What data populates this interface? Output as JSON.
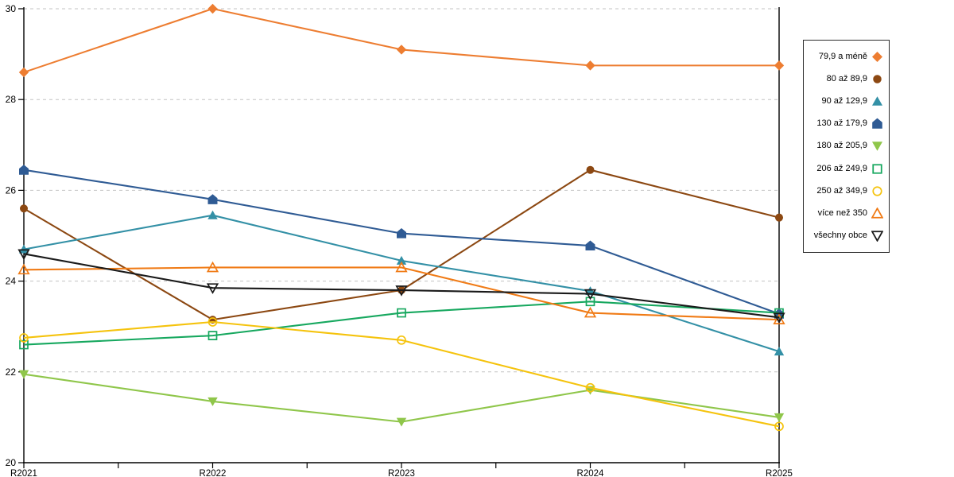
{
  "chart_data": {
    "type": "line",
    "title": "",
    "xlabel": "",
    "ylabel": "",
    "x_categories": [
      "R2021",
      "R2022",
      "R2023",
      "R2024",
      "R2025"
    ],
    "ylim": [
      20,
      30
    ],
    "y_ticks": [
      20,
      22,
      24,
      26,
      28,
      30
    ],
    "grid": "dashed-horizontal",
    "legend_position": "right-outside",
    "series": [
      {
        "name": "79,9 a méně",
        "color": "#ED7D31",
        "marker": "diamond",
        "filled": true,
        "values": [
          28.6,
          30.0,
          29.1,
          28.75,
          28.75
        ]
      },
      {
        "name": "80 až 89,9",
        "color": "#8C4812",
        "marker": "circle",
        "filled": true,
        "values": [
          25.6,
          23.15,
          23.8,
          26.45,
          25.4
        ]
      },
      {
        "name": "90 až 129,9",
        "color": "#3390A6",
        "marker": "triangle-up",
        "filled": true,
        "values": [
          24.7,
          25.45,
          24.45,
          23.78,
          22.45
        ]
      },
      {
        "name": "130 až 179,9",
        "color": "#2F5B94",
        "marker": "pentagon",
        "filled": true,
        "values": [
          26.45,
          25.8,
          25.05,
          24.78,
          23.28
        ]
      },
      {
        "name": "180 až 205,9",
        "color": "#8FC64A",
        "marker": "triangle-down",
        "filled": true,
        "values": [
          21.95,
          21.35,
          20.9,
          21.6,
          21.0
        ]
      },
      {
        "name": "206 až 249,9",
        "color": "#17A85F",
        "marker": "square",
        "filled": false,
        "values": [
          22.6,
          22.8,
          23.3,
          23.55,
          23.3
        ]
      },
      {
        "name": "250 až 349,9",
        "color": "#F5C30D",
        "marker": "circle",
        "filled": false,
        "values": [
          22.75,
          23.1,
          22.7,
          21.65,
          20.8
        ]
      },
      {
        "name": "více než 350",
        "color": "#F07B16",
        "marker": "triangle-up",
        "filled": false,
        "values": [
          24.25,
          24.3,
          24.3,
          23.3,
          23.15
        ]
      },
      {
        "name": "všechny obce",
        "color": "#1A1A1A",
        "marker": "triangle-down",
        "filled": false,
        "values": [
          24.6,
          23.85,
          23.8,
          23.72,
          23.2
        ]
      }
    ]
  },
  "style": {
    "grid_color": "#C3C3C3",
    "axis_color": "#000000",
    "background": "#FFFFFF"
  }
}
